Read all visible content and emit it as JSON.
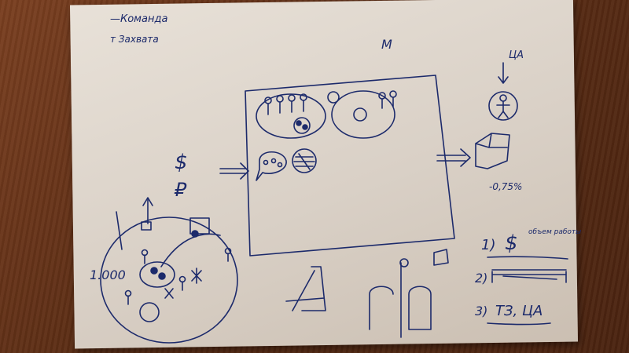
{
  "photo": {
    "surface_color": "#6b3418",
    "paper_color": "#ddd5cb",
    "ink_color": "#1c2a6b"
  },
  "notes": {
    "top_left_line1": "—Команда",
    "top_left_line2": "т Захвата",
    "screen_label": "М",
    "target_label": "ЦА",
    "dollar": "$",
    "ruble": "₽",
    "percent": "-0,75%",
    "crowd_count": "1.000",
    "list_1_num": "1)",
    "list_1_sym": "$",
    "list_1_note": "объем работы",
    "list_2_num": "2)",
    "list_3_num": "3)",
    "list_3_text": "ТЗ, ЦА"
  }
}
